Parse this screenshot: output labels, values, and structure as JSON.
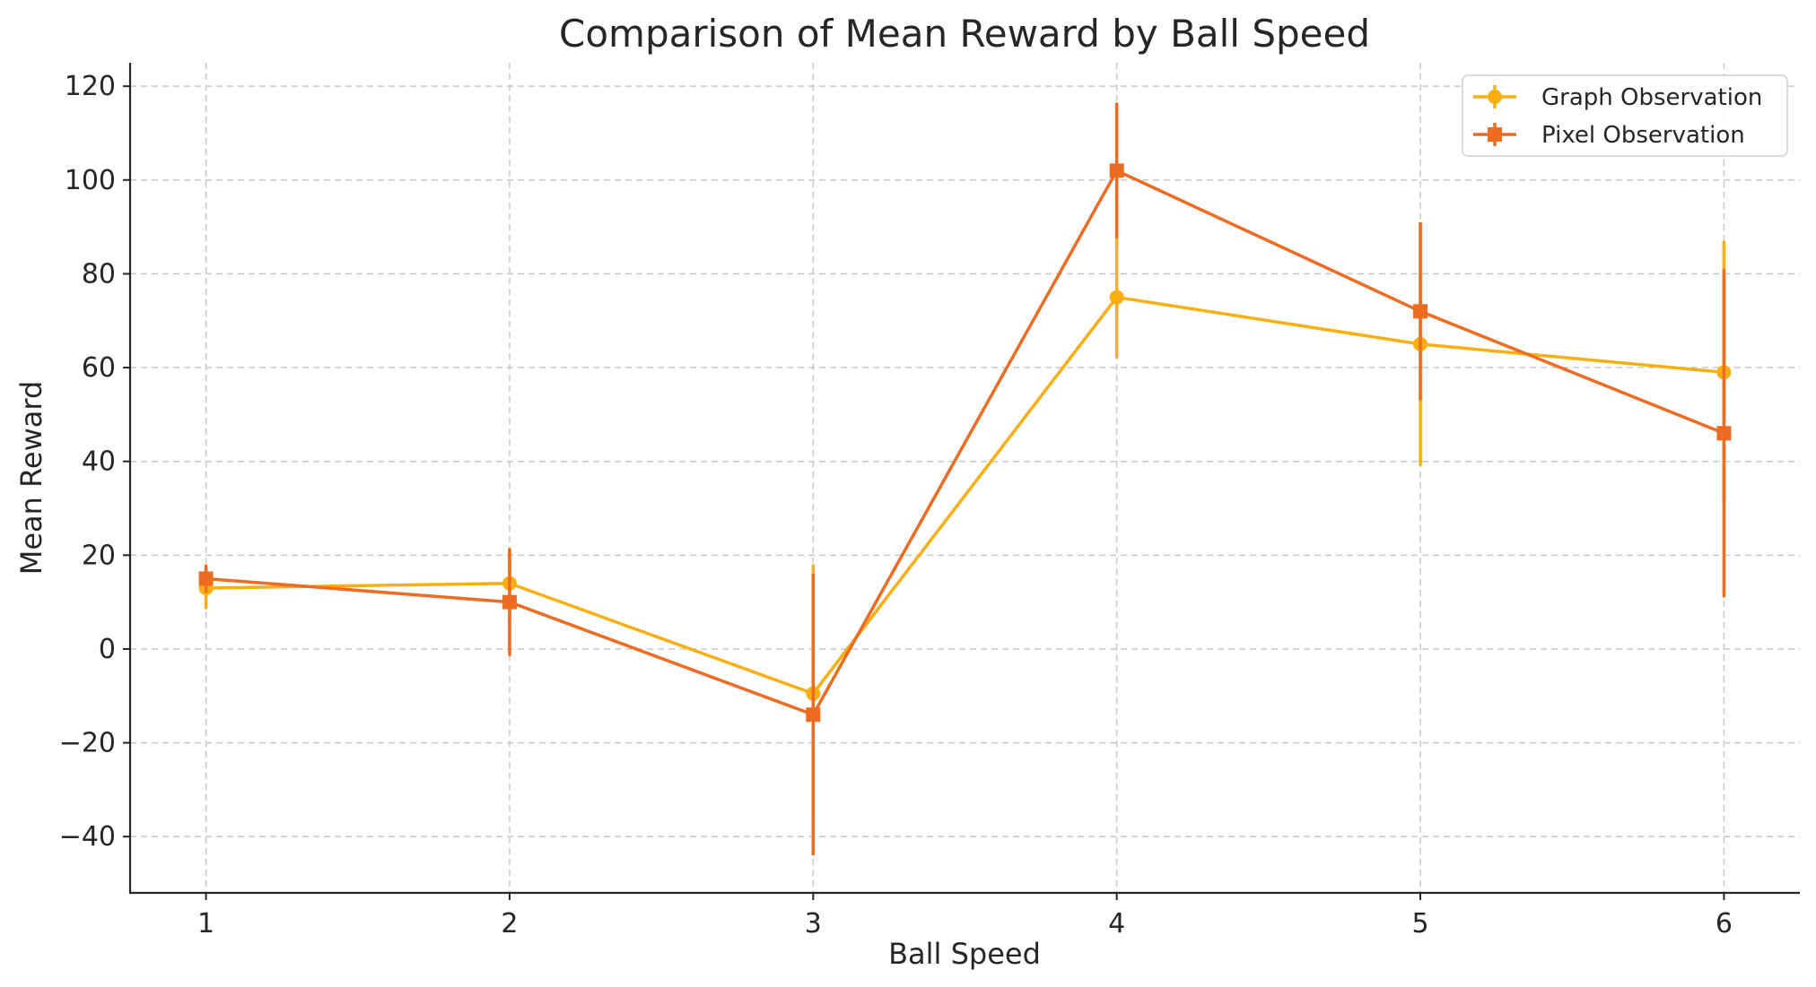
{
  "chart_data": {
    "type": "line",
    "title": "Comparison of Mean Reward by Ball Speed",
    "xlabel": "Ball Speed",
    "ylabel": "Mean Reward",
    "x": [
      1,
      2,
      3,
      4,
      5,
      6
    ],
    "xticks": [
      "1",
      "2",
      "3",
      "4",
      "5",
      "6"
    ],
    "xlim": [
      0.75,
      6.25
    ],
    "ylim": [
      -52,
      125
    ],
    "yticks": [
      -40,
      -20,
      0,
      20,
      40,
      60,
      80,
      100,
      120
    ],
    "ytick_labels": [
      "−40",
      "−20",
      "0",
      "20",
      "40",
      "60",
      "80",
      "100",
      "120"
    ],
    "grid": true,
    "legend_position": "top-right",
    "series": [
      {
        "name": "Graph Observation",
        "color": "#F9AE12",
        "marker": "circle",
        "values": [
          13,
          14,
          -9.5,
          75,
          65,
          59
        ],
        "errors": [
          4.5,
          7.5,
          27.5,
          13,
          26,
          28
        ]
      },
      {
        "name": "Pixel Observation",
        "color": "#EE6B22",
        "marker": "square",
        "values": [
          15,
          10,
          -14,
          102,
          72,
          46
        ],
        "errors": [
          3,
          11.5,
          30,
          14.5,
          19,
          35
        ]
      }
    ]
  }
}
